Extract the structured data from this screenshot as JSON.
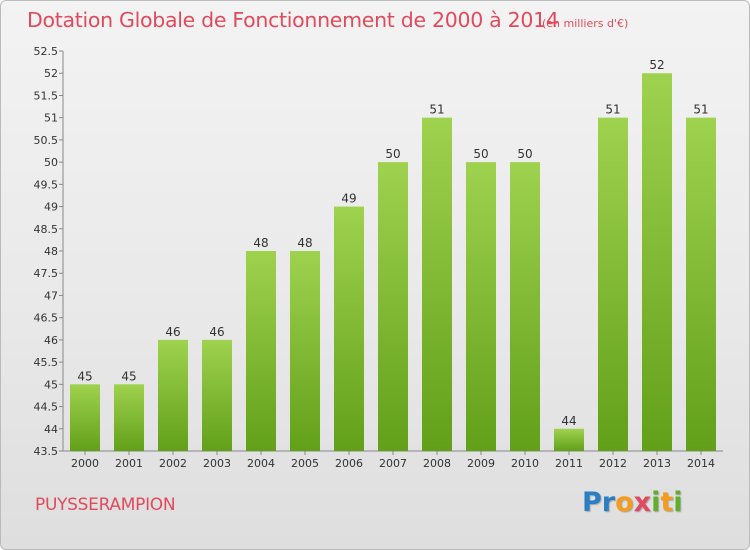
{
  "title": "Dotation Globale de Fonctionnement de 2000 à 2014",
  "subtitle": "(en milliers d'€)",
  "commune": "PUYSSERAMPION",
  "logo": {
    "p1": "Pr",
    "p2": "o",
    "p3": "x",
    "p4": "i",
    "p5": "t",
    "p6": "i"
  },
  "colors": {
    "title": "#e14a5c",
    "bar_top": "#9fd24e",
    "bar_bottom": "#62a01a",
    "axis": "#888888"
  },
  "chart_data": {
    "type": "bar",
    "title": "Dotation Globale de Fonctionnement de 2000 à 2014",
    "xlabel": "",
    "ylabel": "",
    "ylim": [
      43.5,
      52.5
    ],
    "ytick_step": 0.5,
    "grid": false,
    "categories": [
      "2000",
      "2001",
      "2002",
      "2003",
      "2004",
      "2005",
      "2006",
      "2007",
      "2008",
      "2009",
      "2010",
      "2011",
      "2012",
      "2013",
      "2014"
    ],
    "values": [
      45,
      45,
      46,
      46,
      48,
      48,
      49,
      50,
      51,
      50,
      50,
      44,
      51,
      52,
      51
    ],
    "labels": [
      "45",
      "45",
      "46",
      "46",
      "48",
      "48",
      "49",
      "50",
      "51",
      "50",
      "50",
      "44",
      "51",
      "52",
      "51"
    ]
  }
}
